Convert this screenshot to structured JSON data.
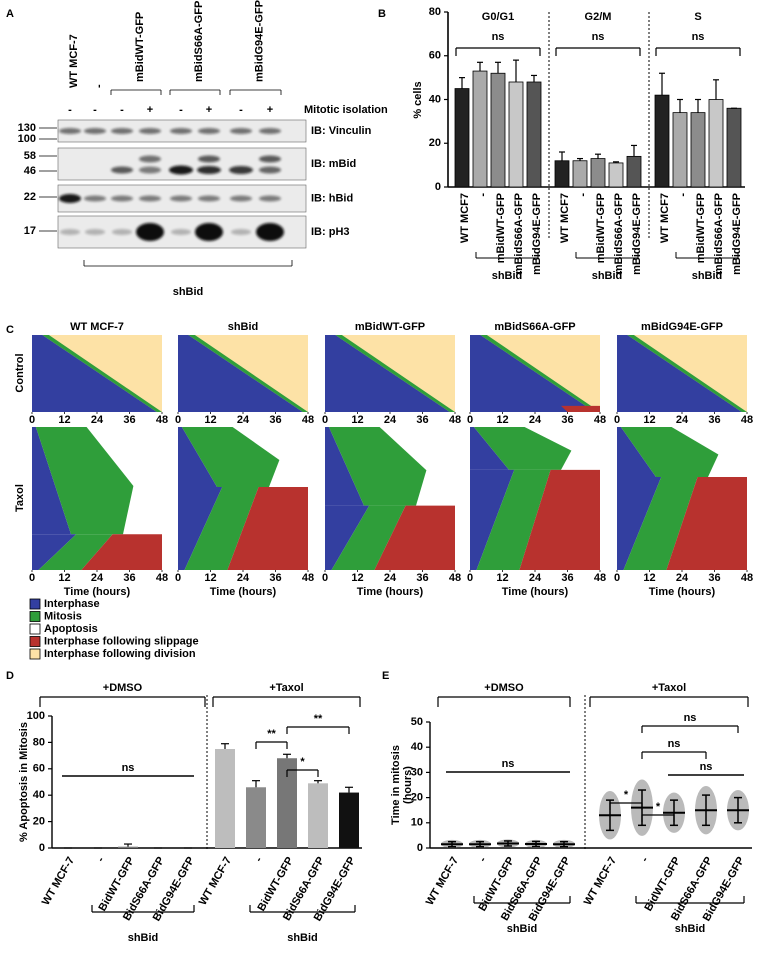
{
  "panel_a": {
    "label": "A",
    "lanes": [
      "WT MCF-7",
      "-"
    ],
    "constructs": [
      "mBidWT-GFP",
      "mBidS66A-GFP",
      "mBidG94E-GFP"
    ],
    "mitotic": [
      "-",
      "-",
      "-",
      "+",
      "-",
      "+",
      "-",
      "+"
    ],
    "mitotic_label": "Mitotic isolation",
    "blots": [
      {
        "label": "IB: Vinculin",
        "markers": [
          130,
          100
        ]
      },
      {
        "label": "IB: mBid",
        "markers": [
          58,
          46
        ]
      },
      {
        "label": "IB: hBid",
        "markers": [
          22
        ]
      },
      {
        "label": "IB: pH3",
        "markers": [
          17
        ]
      }
    ],
    "group": "shBid"
  },
  "panel_c": {
    "label": "C",
    "columns": [
      "WT MCF-7",
      "shBid",
      "mBidWT-GFP",
      "mBidS66A-GFP",
      "mBidG94E-GFP"
    ],
    "rows": [
      "Control",
      "Taxol"
    ],
    "xlim": [
      0,
      48
    ],
    "xticks": [
      0,
      12,
      24,
      36,
      48
    ],
    "xlabel": "Time (hours)"
  },
  "legend": [
    {
      "label": "Interphase",
      "color": "#333fa0"
    },
    {
      "label": "Mitosis",
      "color": "#2f9e3a"
    },
    {
      "label": "Apoptosis",
      "color": "#ffffff"
    },
    {
      "label": "Interphase following slippage",
      "color": "#b8322e"
    },
    {
      "label": "Interphase following division",
      "color": "#fde2a6"
    }
  ],
  "chart_data": [
    {
      "label": "B",
      "type": "bar",
      "ylabel": "% cells",
      "ylim": [
        0,
        80
      ],
      "yticks": [
        0,
        20,
        40,
        60,
        80
      ],
      "categories": [
        "WT MCF7",
        "-",
        "mBidWT-GFP",
        "mBidS66A-GFP",
        "mBidG94E-GFP"
      ],
      "colors": [
        "#222222",
        "#aaaaaa",
        "#8c8c8c",
        "#c8c8c8",
        "#555555"
      ],
      "series": [
        {
          "name": "G0/G1",
          "values": [
            45,
            53,
            52,
            48,
            48
          ],
          "errors": [
            5,
            4,
            5,
            10,
            3
          ]
        },
        {
          "name": "G2/M",
          "values": [
            12,
            12,
            13,
            11,
            14
          ],
          "errors": [
            4,
            1,
            2,
            0.5,
            5
          ]
        },
        {
          "name": "S",
          "values": [
            42,
            34,
            34,
            40,
            36
          ],
          "errors": [
            10,
            6,
            6,
            9,
            0
          ]
        }
      ],
      "annotations": [
        "ns",
        "ns",
        "ns"
      ],
      "group_label": "shBid"
    },
    {
      "label": "D",
      "type": "bar",
      "ylabel": "% Apoptosis in Mitosis",
      "ylim": [
        0,
        100
      ],
      "yticks": [
        0,
        20,
        40,
        60,
        80,
        100
      ],
      "categories": [
        "WT MCF-7",
        "-",
        "BidWT-GFP",
        "BidS66A-GFP",
        "BidG94E-GFP"
      ],
      "series": [
        {
          "name": "+DMSO",
          "values": [
            0,
            0,
            1,
            0,
            0
          ],
          "errors": [
            0,
            0,
            2,
            0,
            0
          ],
          "colors": [
            "#bdbdbd",
            "#8a8a8a",
            "#777777",
            "#bdbdbd",
            "#111111"
          ]
        },
        {
          "name": "+Taxol",
          "values": [
            75,
            46,
            68,
            49,
            42
          ],
          "errors": [
            4,
            5,
            3,
            2,
            4
          ],
          "colors": [
            "#bdbdbd",
            "#8a8a8a",
            "#777777",
            "#bdbdbd",
            "#111111"
          ]
        }
      ],
      "annotations": [
        "ns",
        "**",
        "*",
        "**"
      ],
      "group_label": "shBid"
    },
    {
      "label": "E",
      "type": "scatter",
      "ylabel": [
        "Time in mitosis",
        "(hours)"
      ],
      "ylim": [
        0,
        50
      ],
      "yticks": [
        0,
        10,
        20,
        30,
        40,
        50
      ],
      "categories": [
        "WT MCF-7",
        "-",
        "BidWT-GFP",
        "BidS66A-GFP",
        "BidG94E-GFP"
      ],
      "series": [
        {
          "name": "+DMSO",
          "values": [
            1.5,
            1.5,
            1.8,
            1.6,
            1.5
          ],
          "errors": [
            1,
            1,
            1,
            1,
            1
          ],
          "color": "#8c8c8c"
        },
        {
          "name": "+Taxol",
          "values": [
            13,
            16,
            14,
            15,
            15
          ],
          "errors": [
            6,
            7,
            5,
            6,
            5
          ],
          "color": "#8c8c8c"
        }
      ],
      "annotations": [
        "ns",
        "*",
        "*",
        "ns",
        "ns",
        "ns"
      ],
      "group_label": "shBid"
    }
  ]
}
